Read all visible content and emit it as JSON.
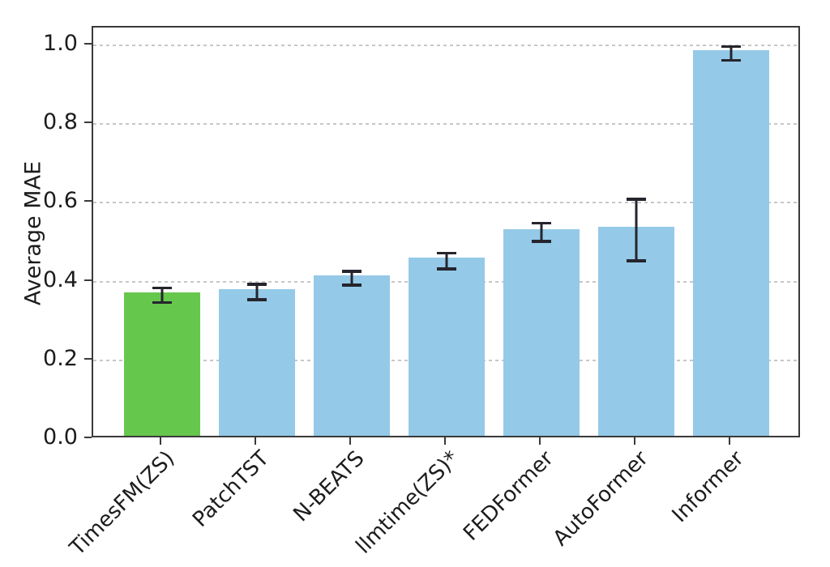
{
  "figure": {
    "background": "#ffffff",
    "frame_color": "#3a3a3a",
    "grid_color": "#c7c7c7",
    "text_color": "#1c1c1c"
  },
  "chart_data": {
    "type": "bar",
    "title": "",
    "xlabel": "",
    "ylabel": "Average MAE",
    "categories": [
      "TimesFM(ZS)",
      "PatchTST",
      "N-BEATS",
      "llmtime(ZS)*",
      "FEDFormer",
      "AutoFormer",
      "Informer"
    ],
    "values": [
      0.365,
      0.373,
      0.408,
      0.452,
      0.525,
      0.531,
      0.979
    ],
    "error_bars": [
      0.022,
      0.023,
      0.021,
      0.024,
      0.027,
      0.082,
      0.021
    ],
    "bar_colors": [
      "#66c74d",
      "#94c9e8",
      "#94c9e8",
      "#94c9e8",
      "#94c9e8",
      "#94c9e8",
      "#94c9e8"
    ],
    "highlight_color": "#66c74d",
    "default_color": "#94c9e8",
    "error_color": "#25252d",
    "ylim": [
      0,
      1.045
    ],
    "yticks": [
      {
        "value": 0.0,
        "label": "0.0"
      },
      {
        "value": 0.2,
        "label": "0.2"
      },
      {
        "value": 0.4,
        "label": "0.4"
      },
      {
        "value": 0.6,
        "label": "0.6"
      },
      {
        "value": 0.8,
        "label": "0.8"
      },
      {
        "value": 1.0,
        "label": "1.0"
      }
    ],
    "grid": true,
    "grid_style": "dashed-horizontal",
    "legend": false,
    "x_tick_rotation": 45
  }
}
